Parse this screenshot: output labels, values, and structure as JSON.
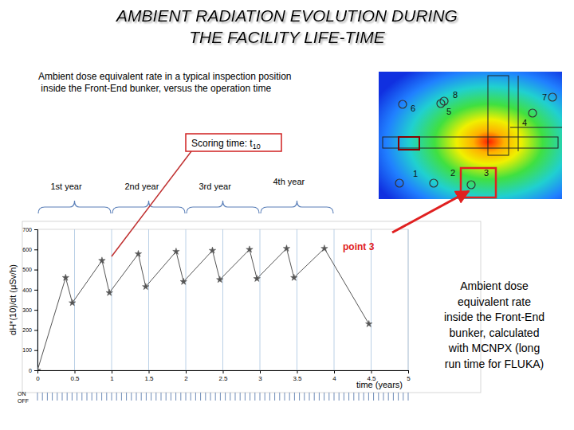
{
  "chart_data": {
    "type": "line",
    "x_label": "time (years)",
    "y_label": "dH*(10)/dt (μSv/h)",
    "x": [
      0,
      0.38,
      0.47,
      0.87,
      0.97,
      1.36,
      1.46,
      1.87,
      1.97,
      2.36,
      2.46,
      2.86,
      2.96,
      3.36,
      3.46,
      3.87,
      4.47
    ],
    "series": [
      {
        "name": "point 3",
        "color": "#555555",
        "marker": "star",
        "line_style": "solid",
        "values": [
          0,
          460,
          335,
          545,
          385,
          578,
          415,
          590,
          440,
          595,
          450,
          600,
          455,
          605,
          460,
          605,
          230
        ]
      }
    ],
    "xlim": [
      0,
      5
    ],
    "xticks": [
      0,
      0.5,
      1,
      1.5,
      2,
      2.5,
      3,
      3.5,
      4,
      4.5,
      5
    ],
    "ylim": [
      0,
      700
    ],
    "yticks": [
      0,
      100,
      200,
      300,
      400,
      500,
      600,
      700
    ],
    "grid": true,
    "legend": "none"
  },
  "slide": {
    "title": [
      "AMBIENT RADIATION EVOLUTION DURING",
      "THE FACILITY LIFE-TIME"
    ],
    "subtitle": [
      "Ambient dose equivalent rate in a typical inspection position",
      " inside the Front-End bunker, versus the operation time"
    ],
    "scoring_time": {
      "text": "Scoring time: t",
      "subscript": "10"
    },
    "years": [
      "1st year",
      "2nd year",
      "3rd year",
      "4th year"
    ],
    "map_points": [
      "1",
      "2",
      "3",
      "4",
      "5",
      "6",
      "7",
      "8"
    ],
    "point_label": "point 3",
    "caption": [
      "Ambient dose",
      "equivalent rate",
      "inside the Front-End",
      "bunker, calculated",
      "with MCNPX (long",
      "run time for FLUKA)"
    ],
    "on_off": [
      "ON",
      "OFF"
    ]
  }
}
